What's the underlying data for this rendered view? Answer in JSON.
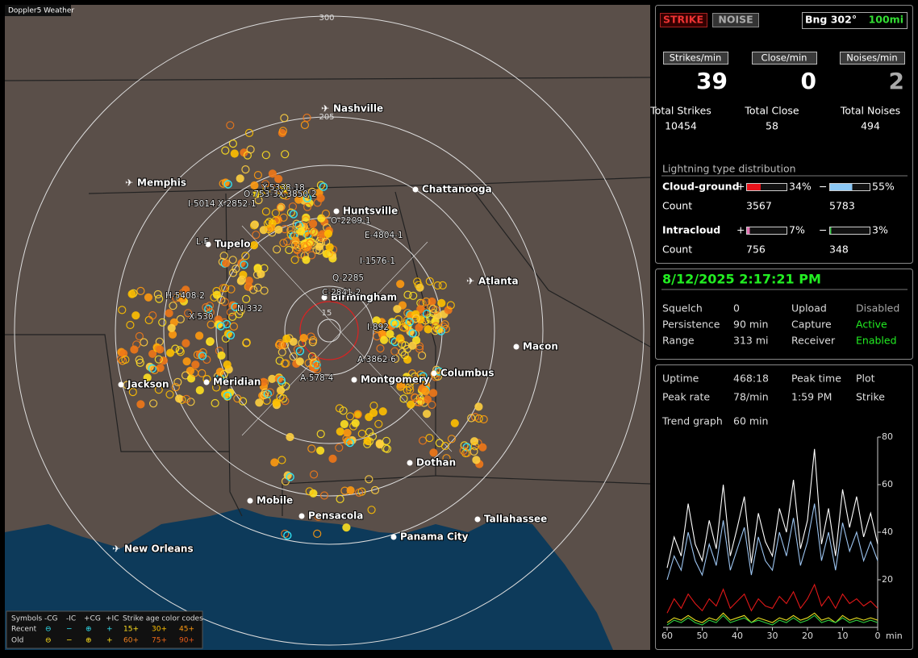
{
  "map": {
    "app_label": "Doppler5 Weather",
    "range_labels": [
      "300",
      "205",
      "15"
    ],
    "cities": [
      "Nashville",
      "Memphis",
      "Chattanooga",
      "Huntsville",
      "Tupelo",
      "Atlanta",
      "Birmingham",
      "Macon",
      "Jackson",
      "Meridian",
      "Montgomery",
      "Columbus",
      "Dothan",
      "Mobile",
      "Pensacola",
      "Tallahassee",
      "Panama City",
      "New Orleans"
    ],
    "strike_ids": [
      "Y-5338-18",
      "O-753-3X-3850-2",
      "I-5014",
      "X-2852-1",
      "O-2209-1",
      "E-4804-1",
      "L-F",
      "I-1576-1",
      "Q-2285",
      "C-2841-2",
      "H-5408-2",
      "N-332",
      "X-530",
      "I-892",
      "A-3862-6",
      "A-578-4"
    ],
    "legend": {
      "header": [
        "Symbols",
        "-CG",
        "-IC",
        "+CG",
        "+IC",
        "Strike age color codes"
      ],
      "recent": [
        "Recent",
        "⊖",
        "−",
        "⊕",
        "+",
        "15+",
        "30+",
        "45+"
      ],
      "old": [
        "Old",
        "⊖",
        "−",
        "⊕",
        "+",
        "60+",
        "75+",
        "90+"
      ]
    }
  },
  "strike_panel": {
    "buttons": [
      "STRIKE",
      "NOISE"
    ],
    "bearing": "Bng 302°",
    "range": "100mi",
    "rates": [
      {
        "label": "Strikes/min",
        "value": 39,
        "total_label": "Total Strikes",
        "total": 10454
      },
      {
        "label": "Close/min",
        "value": 0,
        "total_label": "Total Close",
        "total": 58
      },
      {
        "label": "Noises/min",
        "value": 2,
        "total_label": "Total Noises",
        "total": 494
      }
    ],
    "distribution_title": "Lightning type distribution",
    "distribution": [
      {
        "label": "Cloud-ground",
        "pos_sign": "+",
        "pos_value": 34,
        "pos_label": "34%",
        "pos_color": "#e8121a",
        "neg_sign": "−",
        "neg_value": 55,
        "neg_label": "55%",
        "neg_color": "#8cc8f5",
        "count_label": "Count",
        "pos_count": 3567,
        "neg_count": 5783
      },
      {
        "label": "Intracloud",
        "pos_sign": "+",
        "pos_value": 7,
        "pos_label": "7%",
        "pos_color": "#e070b0",
        "neg_sign": "−",
        "neg_value": 3,
        "neg_label": "3%",
        "neg_color": "#30c040",
        "count_label": "Count",
        "pos_count": 756,
        "neg_count": 348
      }
    ]
  },
  "status": {
    "datetime": "8/12/2025 2:17:21 PM",
    "rows": [
      [
        "Squelch",
        "0",
        "Upload",
        "Disabled"
      ],
      [
        "Persistence",
        "90 min",
        "Capture",
        "Active"
      ],
      [
        "Range",
        "313 mi",
        "Receiver",
        "Enabled"
      ]
    ]
  },
  "trend": {
    "rows": [
      [
        "Uptime",
        "468:18",
        "Peak time",
        "Plot"
      ],
      [
        "Peak rate",
        "78/min",
        "1:59 PM",
        "Strike"
      ],
      [
        "Trend graph",
        "60 min"
      ]
    ]
  },
  "chart_data": {
    "type": "line",
    "x": [
      60,
      58,
      56,
      54,
      52,
      50,
      48,
      46,
      44,
      42,
      40,
      38,
      36,
      34,
      32,
      30,
      28,
      26,
      24,
      22,
      20,
      18,
      16,
      14,
      12,
      10,
      8,
      6,
      4,
      2,
      0
    ],
    "series": [
      {
        "color": "#ffffff",
        "values": [
          25,
          38,
          30,
          52,
          35,
          28,
          45,
          33,
          60,
          30,
          42,
          55,
          27,
          48,
          36,
          30,
          50,
          40,
          62,
          33,
          45,
          75,
          35,
          50,
          30,
          58,
          42,
          55,
          38,
          48,
          35
        ]
      },
      {
        "color": "#9cc4f0",
        "values": [
          20,
          30,
          24,
          40,
          28,
          22,
          35,
          26,
          45,
          24,
          33,
          42,
          22,
          38,
          28,
          24,
          40,
          30,
          46,
          26,
          36,
          52,
          28,
          40,
          24,
          44,
          32,
          40,
          28,
          36,
          28
        ]
      },
      {
        "color": "#e01818",
        "values": [
          6,
          12,
          8,
          14,
          10,
          7,
          12,
          9,
          16,
          8,
          11,
          14,
          7,
          12,
          9,
          8,
          13,
          10,
          15,
          8,
          12,
          18,
          9,
          13,
          8,
          14,
          10,
          12,
          9,
          11,
          8
        ]
      },
      {
        "color": "#e8e020",
        "values": [
          2,
          4,
          3,
          5,
          3,
          2,
          4,
          3,
          6,
          3,
          4,
          5,
          2,
          4,
          3,
          2,
          4,
          3,
          5,
          3,
          4,
          6,
          3,
          4,
          2,
          5,
          3,
          4,
          3,
          4,
          3
        ]
      },
      {
        "color": "#30d040",
        "values": [
          1,
          3,
          2,
          4,
          2,
          1,
          3,
          2,
          5,
          2,
          3,
          4,
          2,
          3,
          2,
          1,
          3,
          2,
          4,
          2,
          3,
          5,
          2,
          3,
          2,
          4,
          2,
          3,
          2,
          3,
          2
        ]
      }
    ],
    "xlim": [
      60,
      0
    ],
    "ylim": [
      0,
      80
    ],
    "xticks": [
      60,
      50,
      40,
      30,
      20,
      10,
      0
    ],
    "yticks": [
      20,
      40,
      60,
      80
    ],
    "x_unit": "min"
  }
}
